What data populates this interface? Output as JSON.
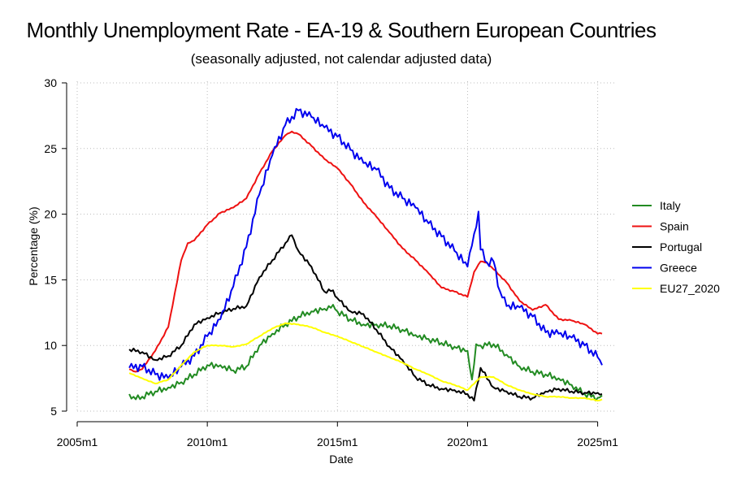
{
  "chart_data": {
    "type": "line",
    "title": "Monthly Unemployment Rate - EA-19 & Southern European Countries",
    "subtitle": "(seasonally adjusted, not calendar adjusted data)",
    "xlabel": "Date",
    "ylabel": "Percentage (%)",
    "xlim": [
      2005.0,
      2025.2
    ],
    "ylim": [
      5,
      30
    ],
    "x_ticks": [
      2005,
      2010,
      2015,
      2020,
      2025
    ],
    "x_tick_labels": [
      "2005m1",
      "2010m1",
      "2015m1",
      "2020m1",
      "2025m1"
    ],
    "y_ticks": [
      5,
      10,
      15,
      20,
      25,
      30
    ],
    "y_tick_labels": [
      "5",
      "10",
      "15",
      "20",
      "25",
      "30"
    ],
    "grid": true,
    "legend_position": "right",
    "series": [
      {
        "name": "Italy",
        "color": "#228B22",
        "x": [
          2007.0,
          2007.25,
          2007.5,
          2008.0,
          2008.5,
          2009.0,
          2009.5,
          2010.0,
          2010.5,
          2011.0,
          2011.5,
          2012.0,
          2012.5,
          2013.0,
          2013.5,
          2014.0,
          2014.5,
          2014.83,
          2015.0,
          2015.5,
          2016.0,
          2016.5,
          2017.0,
          2017.5,
          2018.0,
          2018.5,
          2019.0,
          2019.5,
          2020.0,
          2020.17,
          2020.33,
          2020.5,
          2021.0,
          2021.5,
          2022.0,
          2022.5,
          2023.0,
          2023.5,
          2024.0,
          2024.5,
          2025.0,
          2025.17
        ],
        "y": [
          6.3,
          5.9,
          6.1,
          6.5,
          6.8,
          7.2,
          7.8,
          8.5,
          8.5,
          8.1,
          8.4,
          10.0,
          10.9,
          11.6,
          12.2,
          12.6,
          12.8,
          13.1,
          12.6,
          12.0,
          11.6,
          11.6,
          11.5,
          11.2,
          10.8,
          10.5,
          10.2,
          9.9,
          9.6,
          7.4,
          10.1,
          10.0,
          10.1,
          9.3,
          8.4,
          8.0,
          7.8,
          7.5,
          7.0,
          6.3,
          6.0,
          6.2
        ]
      },
      {
        "name": "Spain",
        "color": "#EE1111",
        "x": [
          2007.0,
          2007.25,
          2007.5,
          2008.0,
          2008.5,
          2009.0,
          2009.25,
          2009.5,
          2010.0,
          2010.5,
          2011.0,
          2011.5,
          2012.0,
          2012.5,
          2013.0,
          2013.25,
          2013.5,
          2014.0,
          2014.5,
          2015.0,
          2015.5,
          2016.0,
          2016.5,
          2017.0,
          2017.5,
          2018.0,
          2018.5,
          2019.0,
          2019.5,
          2020.0,
          2020.25,
          2020.5,
          2020.75,
          2021.0,
          2021.5,
          2022.0,
          2022.5,
          2023.0,
          2023.5,
          2024.0,
          2024.5,
          2025.0,
          2025.17
        ],
        "y": [
          8.2,
          8.0,
          8.2,
          9.6,
          11.4,
          16.5,
          17.8,
          18.0,
          19.2,
          20.1,
          20.5,
          21.2,
          23.1,
          24.8,
          26.0,
          26.3,
          26.1,
          25.2,
          24.2,
          23.5,
          22.3,
          20.9,
          19.8,
          18.6,
          17.4,
          16.5,
          15.5,
          14.4,
          14.1,
          13.7,
          15.6,
          16.4,
          16.3,
          15.8,
          14.8,
          13.4,
          12.7,
          13.1,
          12.0,
          11.9,
          11.6,
          10.9,
          10.9
        ]
      },
      {
        "name": "Portugal",
        "color": "#000000",
        "x": [
          2007.0,
          2007.5,
          2008.0,
          2008.5,
          2009.0,
          2009.5,
          2010.0,
          2010.5,
          2011.0,
          2011.5,
          2012.0,
          2012.5,
          2013.0,
          2013.25,
          2013.5,
          2014.0,
          2014.5,
          2014.83,
          2015.0,
          2015.5,
          2016.0,
          2016.5,
          2017.0,
          2017.5,
          2018.0,
          2018.5,
          2019.0,
          2019.5,
          2020.0,
          2020.25,
          2020.5,
          2021.0,
          2021.5,
          2022.0,
          2022.5,
          2023.0,
          2023.5,
          2024.0,
          2024.5,
          2025.0,
          2025.17
        ],
        "y": [
          9.7,
          9.5,
          8.9,
          9.2,
          10.0,
          11.6,
          12.1,
          12.5,
          12.8,
          13.0,
          15.2,
          16.5,
          17.8,
          18.4,
          17.2,
          16.0,
          14.1,
          14.2,
          13.6,
          12.6,
          12.4,
          11.2,
          9.9,
          8.9,
          7.6,
          7.0,
          6.7,
          6.6,
          6.3,
          5.8,
          8.3,
          6.8,
          6.5,
          6.1,
          6.0,
          6.5,
          6.7,
          6.5,
          6.4,
          6.4,
          6.3
        ]
      },
      {
        "name": "Greece",
        "color": "#0000EE",
        "x": [
          2007.0,
          2007.5,
          2008.0,
          2008.5,
          2009.0,
          2009.5,
          2010.0,
          2010.5,
          2011.0,
          2011.5,
          2012.0,
          2012.5,
          2013.0,
          2013.5,
          2014.0,
          2014.5,
          2015.0,
          2015.5,
          2016.0,
          2016.5,
          2017.0,
          2017.5,
          2018.0,
          2018.5,
          2019.0,
          2019.5,
          2020.0,
          2020.25,
          2020.42,
          2020.5,
          2020.75,
          2021.0,
          2021.25,
          2021.5,
          2022.0,
          2022.5,
          2023.0,
          2023.5,
          2024.0,
          2024.5,
          2025.0,
          2025.17
        ],
        "y": [
          8.3,
          8.4,
          7.8,
          7.5,
          8.4,
          9.2,
          10.7,
          12.0,
          14.5,
          17.5,
          21.5,
          24.5,
          26.8,
          27.9,
          27.4,
          26.6,
          25.9,
          24.9,
          23.9,
          23.4,
          22.0,
          21.2,
          20.5,
          19.3,
          18.3,
          17.2,
          16.0,
          18.5,
          20.2,
          17.3,
          16.3,
          16.4,
          14.1,
          13.0,
          12.9,
          12.2,
          11.0,
          10.9,
          10.6,
          10.0,
          9.1,
          8.5
        ]
      },
      {
        "name": "EU27_2020",
        "color": "#FFFF00",
        "x": [
          2007.0,
          2007.5,
          2008.0,
          2008.5,
          2009.0,
          2009.5,
          2010.0,
          2010.5,
          2011.0,
          2011.5,
          2012.0,
          2012.5,
          2013.0,
          2013.5,
          2014.0,
          2014.5,
          2015.0,
          2015.5,
          2016.0,
          2016.5,
          2017.0,
          2017.5,
          2018.0,
          2018.5,
          2019.0,
          2019.5,
          2020.0,
          2020.5,
          2021.0,
          2021.5,
          2022.0,
          2022.5,
          2023.0,
          2023.5,
          2024.0,
          2024.5,
          2025.0,
          2025.17
        ],
        "y": [
          7.9,
          7.5,
          7.1,
          7.4,
          8.5,
          9.5,
          10.0,
          10.0,
          9.9,
          10.1,
          10.7,
          11.3,
          11.7,
          11.6,
          11.4,
          11.0,
          10.7,
          10.3,
          9.9,
          9.5,
          9.1,
          8.7,
          8.2,
          7.8,
          7.3,
          7.0,
          6.6,
          7.6,
          7.6,
          7.0,
          6.6,
          6.3,
          6.1,
          6.1,
          6.0,
          6.0,
          5.8,
          5.9
        ]
      }
    ]
  }
}
